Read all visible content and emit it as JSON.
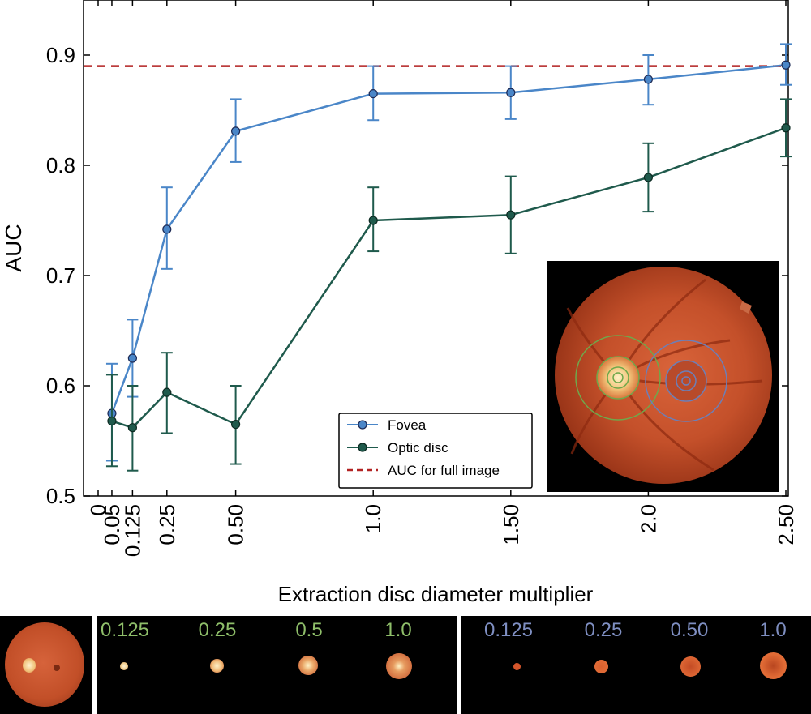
{
  "chart_data": {
    "type": "line",
    "title": "",
    "xlabel": "Extraction disc diameter multiplier",
    "ylabel": "AUC",
    "xlim": [
      0,
      2.5
    ],
    "ylim": [
      0.5,
      0.95
    ],
    "x": [
      0.05,
      0.125,
      0.25,
      0.5,
      1.0,
      1.5,
      2.0,
      2.5
    ],
    "x_tick_values": [
      0,
      0.05,
      0.125,
      0.25,
      0.5,
      1.0,
      1.5,
      2.0,
      2.5
    ],
    "x_tick_labels": [
      "0",
      "0.05",
      "0.125",
      "0.25",
      "0.50",
      "1.0",
      "1.50",
      "2.0",
      "2.50"
    ],
    "y_tick_values": [
      0.5,
      0.6,
      0.7,
      0.8,
      0.9
    ],
    "y_tick_labels": [
      "0.5",
      "0.6",
      "0.7",
      "0.8",
      "0.9"
    ],
    "series": [
      {
        "name": "Fovea",
        "color": "#4a86c8",
        "values": [
          0.575,
          0.625,
          0.742,
          0.831,
          0.865,
          0.866,
          0.878,
          0.891
        ],
        "err_low": [
          0.532,
          0.59,
          0.706,
          0.803,
          0.841,
          0.842,
          0.855,
          0.873
        ],
        "err_high": [
          0.62,
          0.66,
          0.78,
          0.86,
          0.89,
          0.89,
          0.9,
          0.91
        ]
      },
      {
        "name": "Optic disc",
        "color": "#1f5a4c",
        "values": [
          0.568,
          0.562,
          0.594,
          0.565,
          0.75,
          0.755,
          0.789,
          0.834
        ],
        "err_low": [
          0.527,
          0.523,
          0.557,
          0.529,
          0.722,
          0.72,
          0.758,
          0.808
        ],
        "err_high": [
          0.61,
          0.6,
          0.63,
          0.6,
          0.78,
          0.79,
          0.82,
          0.86
        ]
      }
    ],
    "reference_line": {
      "name": "AUC for full image",
      "value": 0.89,
      "color": "#b22222"
    },
    "legend": {
      "position": "lower-center",
      "entries": [
        "Fovea",
        "Optic disc",
        "AUC for full image"
      ]
    }
  },
  "strip": {
    "optic_disc_labels": [
      "0.125",
      "0.25",
      "0.5",
      "1.0"
    ],
    "fovea_labels": [
      "0.125",
      "0.25",
      "0.50",
      "1.0"
    ],
    "optic_disc_color": "#8fbf6a",
    "fovea_color": "#7f8fc2"
  }
}
